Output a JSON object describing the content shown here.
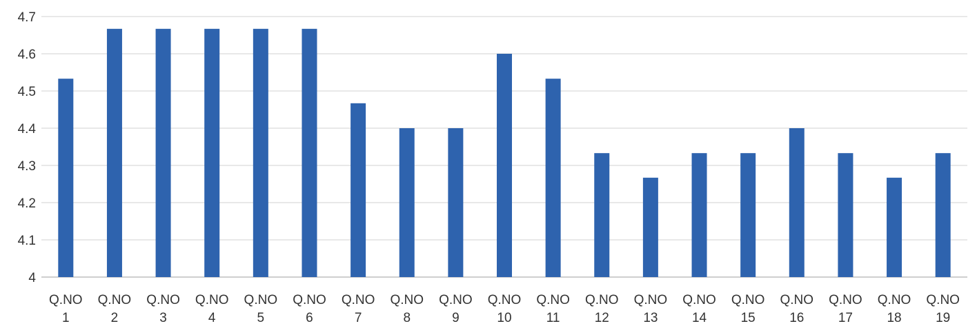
{
  "chart_data": {
    "type": "bar",
    "categories": [
      [
        "Q.NO",
        "1"
      ],
      [
        "Q.NO",
        "2"
      ],
      [
        "Q.NO",
        "3"
      ],
      [
        "Q.NO",
        "4"
      ],
      [
        "Q.NO",
        "5"
      ],
      [
        "Q.NO",
        "6"
      ],
      [
        "Q.NO",
        "7"
      ],
      [
        "Q.NO",
        "8"
      ],
      [
        "Q.NO",
        "9"
      ],
      [
        "Q.NO",
        "10"
      ],
      [
        "Q.NO",
        "11"
      ],
      [
        "Q.NO",
        "12"
      ],
      [
        "Q.NO",
        "13"
      ],
      [
        "Q.NO",
        "14"
      ],
      [
        "Q.NO",
        "15"
      ],
      [
        "Q.NO",
        "16"
      ],
      [
        "Q.NO",
        "17"
      ],
      [
        "Q.NO",
        "18"
      ],
      [
        "Q.NO",
        "19"
      ]
    ],
    "values": [
      4.533,
      4.667,
      4.667,
      4.667,
      4.667,
      4.667,
      4.467,
      4.4,
      4.4,
      4.6,
      4.533,
      4.333,
      4.267,
      4.333,
      4.333,
      4.4,
      4.333,
      4.267,
      4.333
    ],
    "ylim": [
      4,
      4.7
    ],
    "yticks": [
      "4",
      "4.1",
      "4.2",
      "4.3",
      "4.4",
      "4.5",
      "4.6",
      "4.7"
    ],
    "title": "",
    "xlabel": "",
    "ylabel": "",
    "grid": true,
    "legend": "none",
    "colors": {
      "bar": "#2E63AE",
      "grid": "#d9d9d9",
      "text": "#333333"
    }
  }
}
